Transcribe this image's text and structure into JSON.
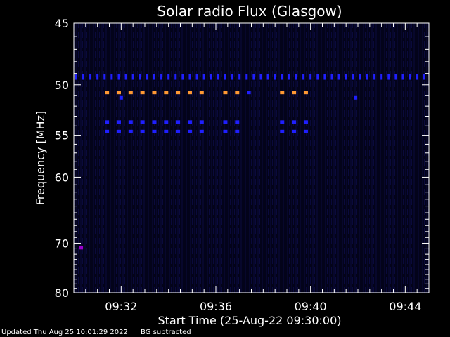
{
  "chart_data": {
    "type": "heatmap",
    "title": "Solar radio Flux (Glasgow)",
    "xlabel": "Start Time (25-Aug-22 09:30:00)",
    "ylabel": "Frequency [MHz]",
    "xlim": [
      "09:30:00",
      "09:45:00"
    ],
    "ylim": [
      45,
      80
    ],
    "y_scale": "reciprocal",
    "x_ticks": [
      "09:32",
      "09:36",
      "09:40",
      "09:44"
    ],
    "y_ticks": [
      45,
      50,
      55,
      60,
      70,
      80
    ],
    "grid": false,
    "colors": {
      "background": "#000000",
      "background_noise": "#0a0a3c",
      "axes": "#ffffff",
      "text": "#ffffff",
      "interference_blue": "#1f1fff",
      "interference_orange": "#ff9933",
      "interference_magenta": "#9900cc"
    },
    "series": [
      {
        "freq_mhz": 49.3,
        "color": "blue",
        "times": [
          "09:30:06",
          "09:30:24",
          "09:30:42",
          "09:31:00",
          "09:31:18",
          "09:31:36",
          "09:31:54",
          "09:32:12",
          "09:32:30",
          "09:32:48",
          "09:33:06",
          "09:33:24",
          "09:33:42",
          "09:34:00",
          "09:34:18",
          "09:34:36",
          "09:34:54",
          "09:35:12",
          "09:35:30",
          "09:35:48",
          "09:36:06",
          "09:36:24",
          "09:36:42",
          "09:37:00",
          "09:37:18",
          "09:37:36",
          "09:37:54",
          "09:38:12",
          "09:38:30",
          "09:38:48",
          "09:39:06",
          "09:39:24",
          "09:39:42",
          "09:40:00",
          "09:40:18",
          "09:40:36",
          "09:40:54",
          "09:41:12",
          "09:41:30",
          "09:41:48",
          "09:42:06",
          "09:42:24",
          "09:42:42",
          "09:43:00",
          "09:43:18",
          "09:43:36",
          "09:43:54",
          "09:44:12",
          "09:44:30",
          "09:44:48"
        ]
      },
      {
        "freq_mhz": 50.7,
        "color": "orange",
        "times": [
          "09:31:24",
          "09:31:54",
          "09:32:24",
          "09:32:54",
          "09:33:24",
          "09:33:54",
          "09:34:24",
          "09:34:54",
          "09:35:24",
          "09:36:24",
          "09:36:54",
          "09:38:48",
          "09:39:18",
          "09:39:48"
        ]
      },
      {
        "freq_mhz": 50.7,
        "color": "blue",
        "times": [
          "09:37:24"
        ]
      },
      {
        "freq_mhz": 51.2,
        "color": "blue",
        "times": [
          "09:32:00",
          "09:41:54"
        ]
      },
      {
        "freq_mhz": 53.6,
        "color": "blue",
        "times": [
          "09:31:24",
          "09:31:54",
          "09:32:24",
          "09:32:54",
          "09:33:24",
          "09:33:54",
          "09:34:24",
          "09:34:54",
          "09:35:24",
          "09:36:24",
          "09:36:54",
          "09:38:48",
          "09:39:18",
          "09:39:48"
        ]
      },
      {
        "freq_mhz": 54.6,
        "color": "blue",
        "times": [
          "09:31:24",
          "09:31:54",
          "09:32:24",
          "09:32:54",
          "09:33:24",
          "09:33:54",
          "09:34:24",
          "09:34:54",
          "09:35:24",
          "09:36:24",
          "09:36:54",
          "09:38:48",
          "09:39:18",
          "09:39:48"
        ]
      },
      {
        "freq_mhz": 70.8,
        "color": "magenta",
        "times": [
          "09:30:18"
        ]
      }
    ],
    "footer": {
      "updated": "Updated Thu Aug 25 10:01:29 2022",
      "note": "BG subtracted"
    }
  }
}
